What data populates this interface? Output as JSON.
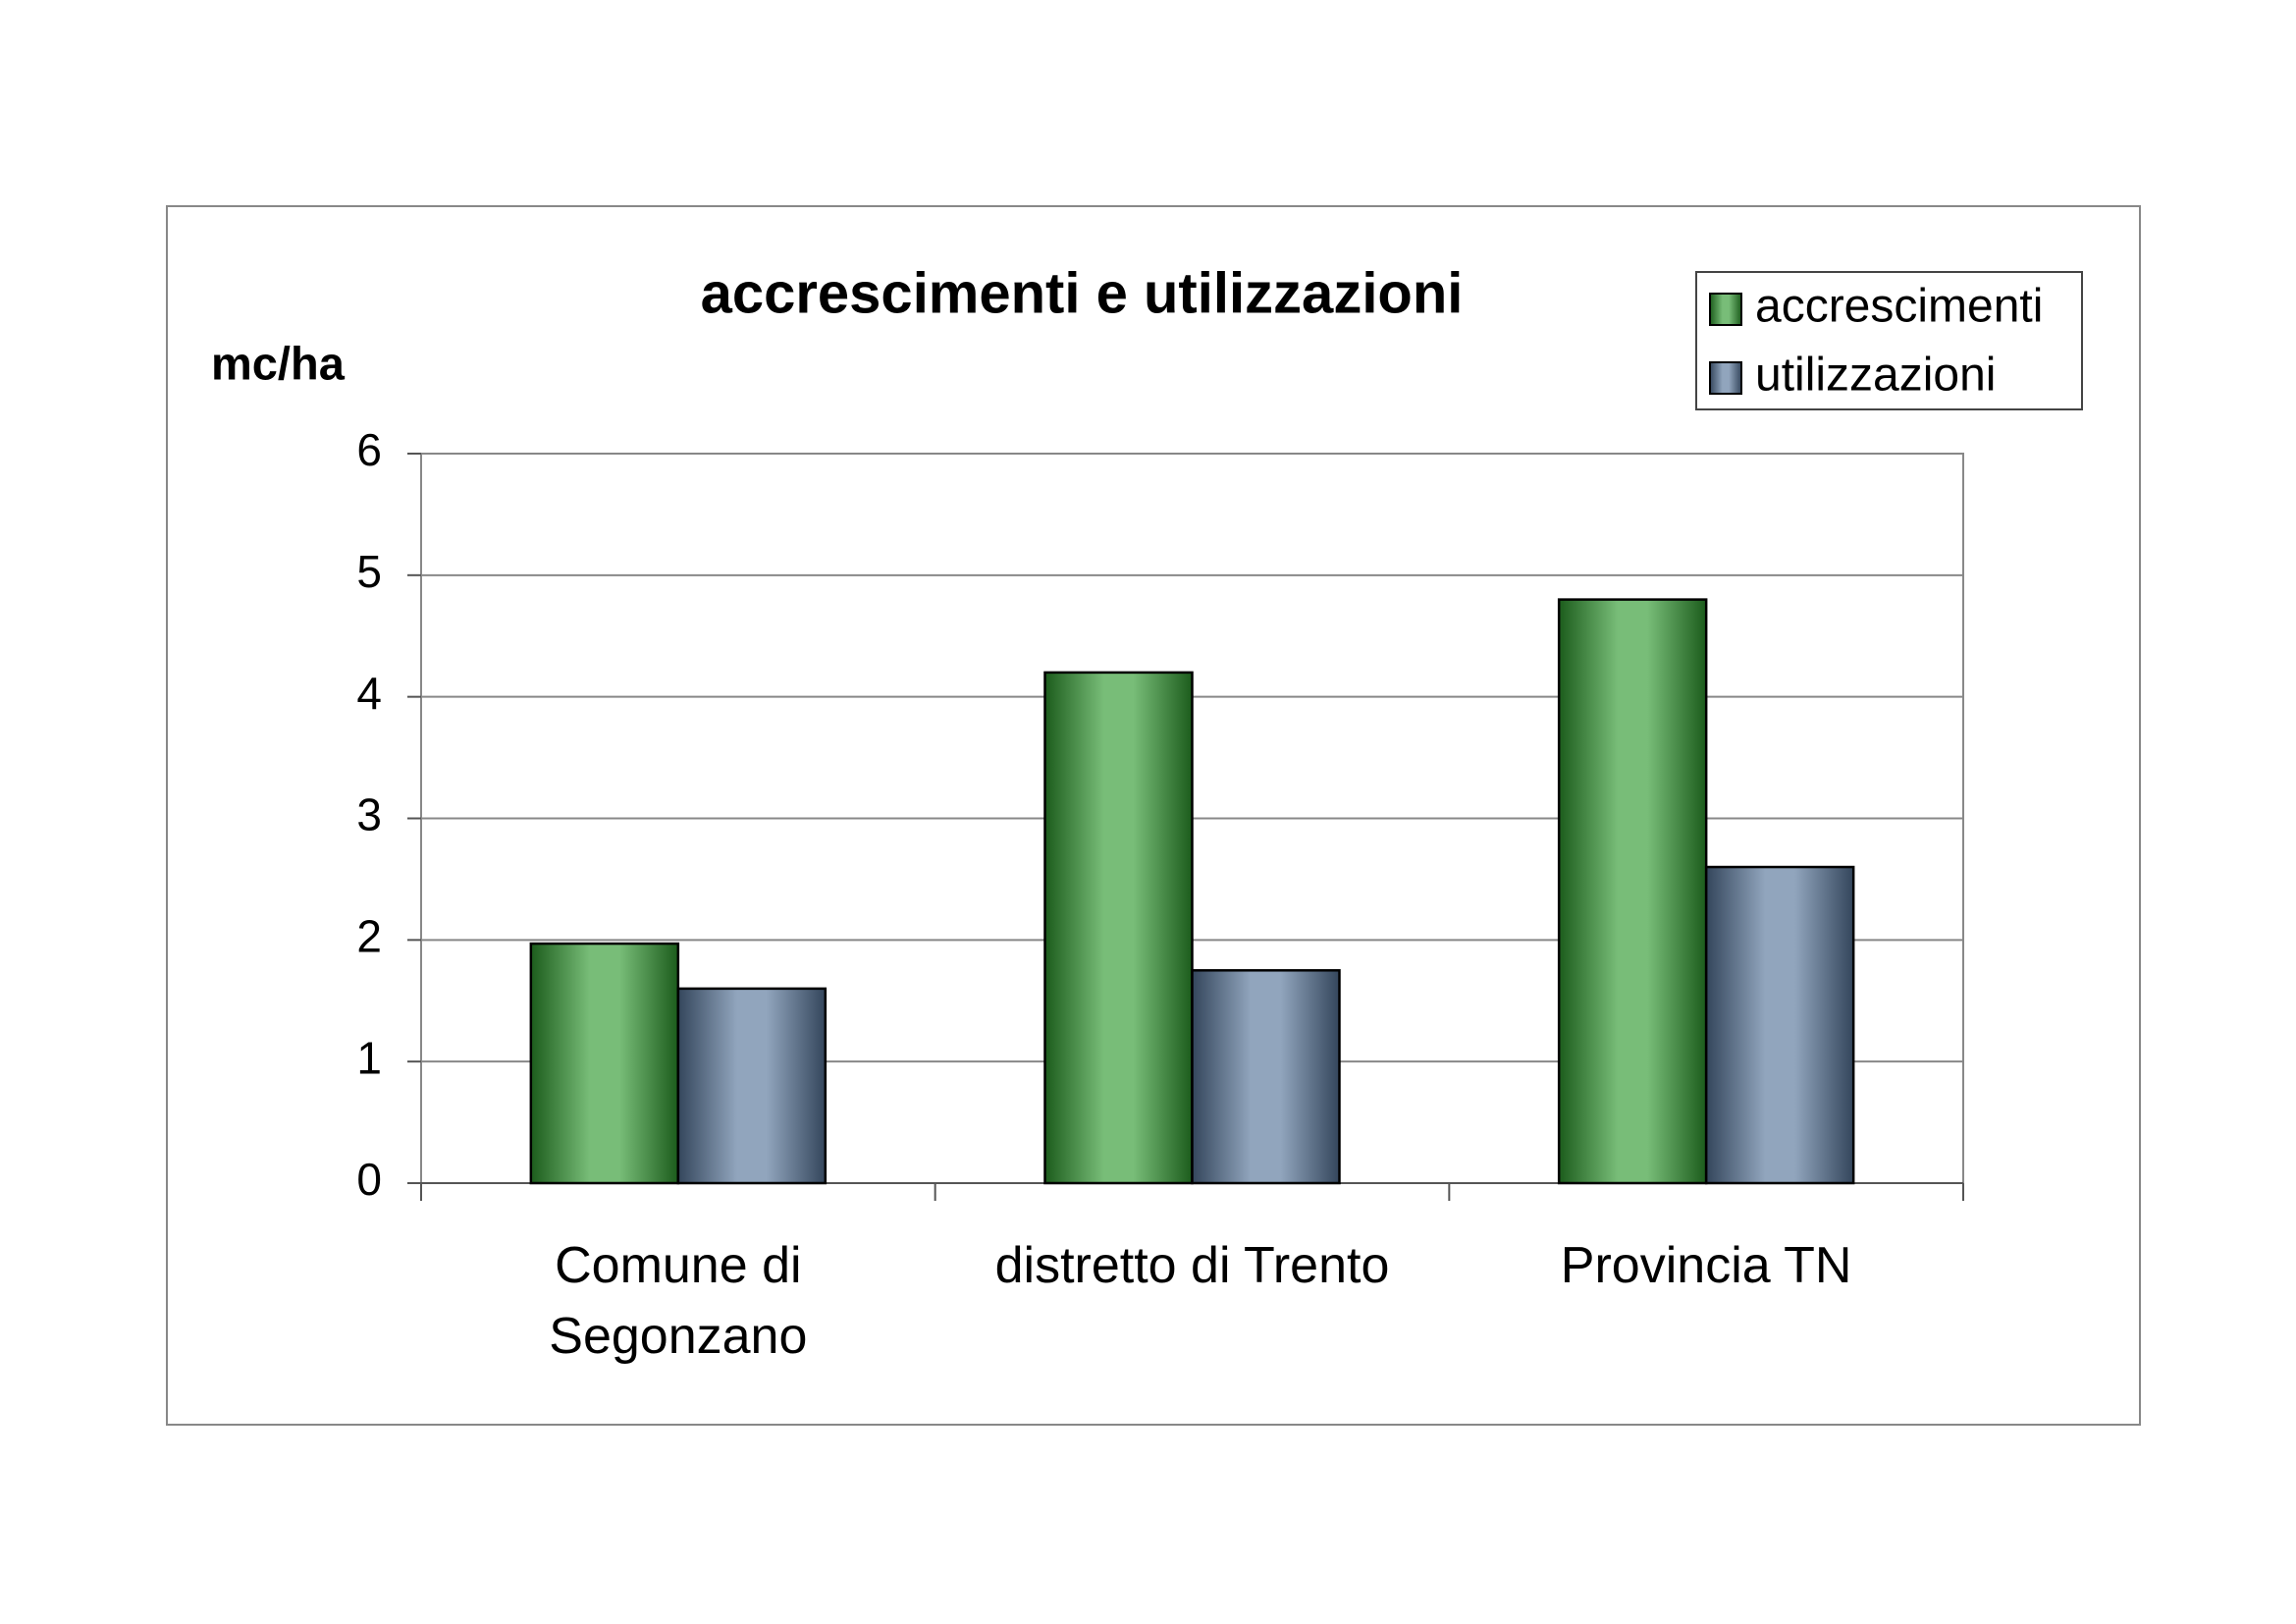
{
  "chart_data": {
    "type": "bar",
    "title": "accrescimenti e utilizzazioni",
    "y_label": "mc/ha",
    "categories": [
      "Comune di\nSegonzano",
      "distretto di Trento",
      "Provincia TN"
    ],
    "series": [
      {
        "name": "accrescimenti",
        "color": "#2f9a2f",
        "values": [
          1.97,
          4.2,
          4.8
        ]
      },
      {
        "name": "utilizzazioni",
        "color": "#56749a",
        "values": [
          1.6,
          1.75,
          2.6
        ]
      }
    ],
    "ylim": [
      0,
      6
    ],
    "yticks": [
      0,
      1,
      2,
      3,
      4,
      5,
      6
    ],
    "grid": true,
    "legend": "top-right"
  }
}
